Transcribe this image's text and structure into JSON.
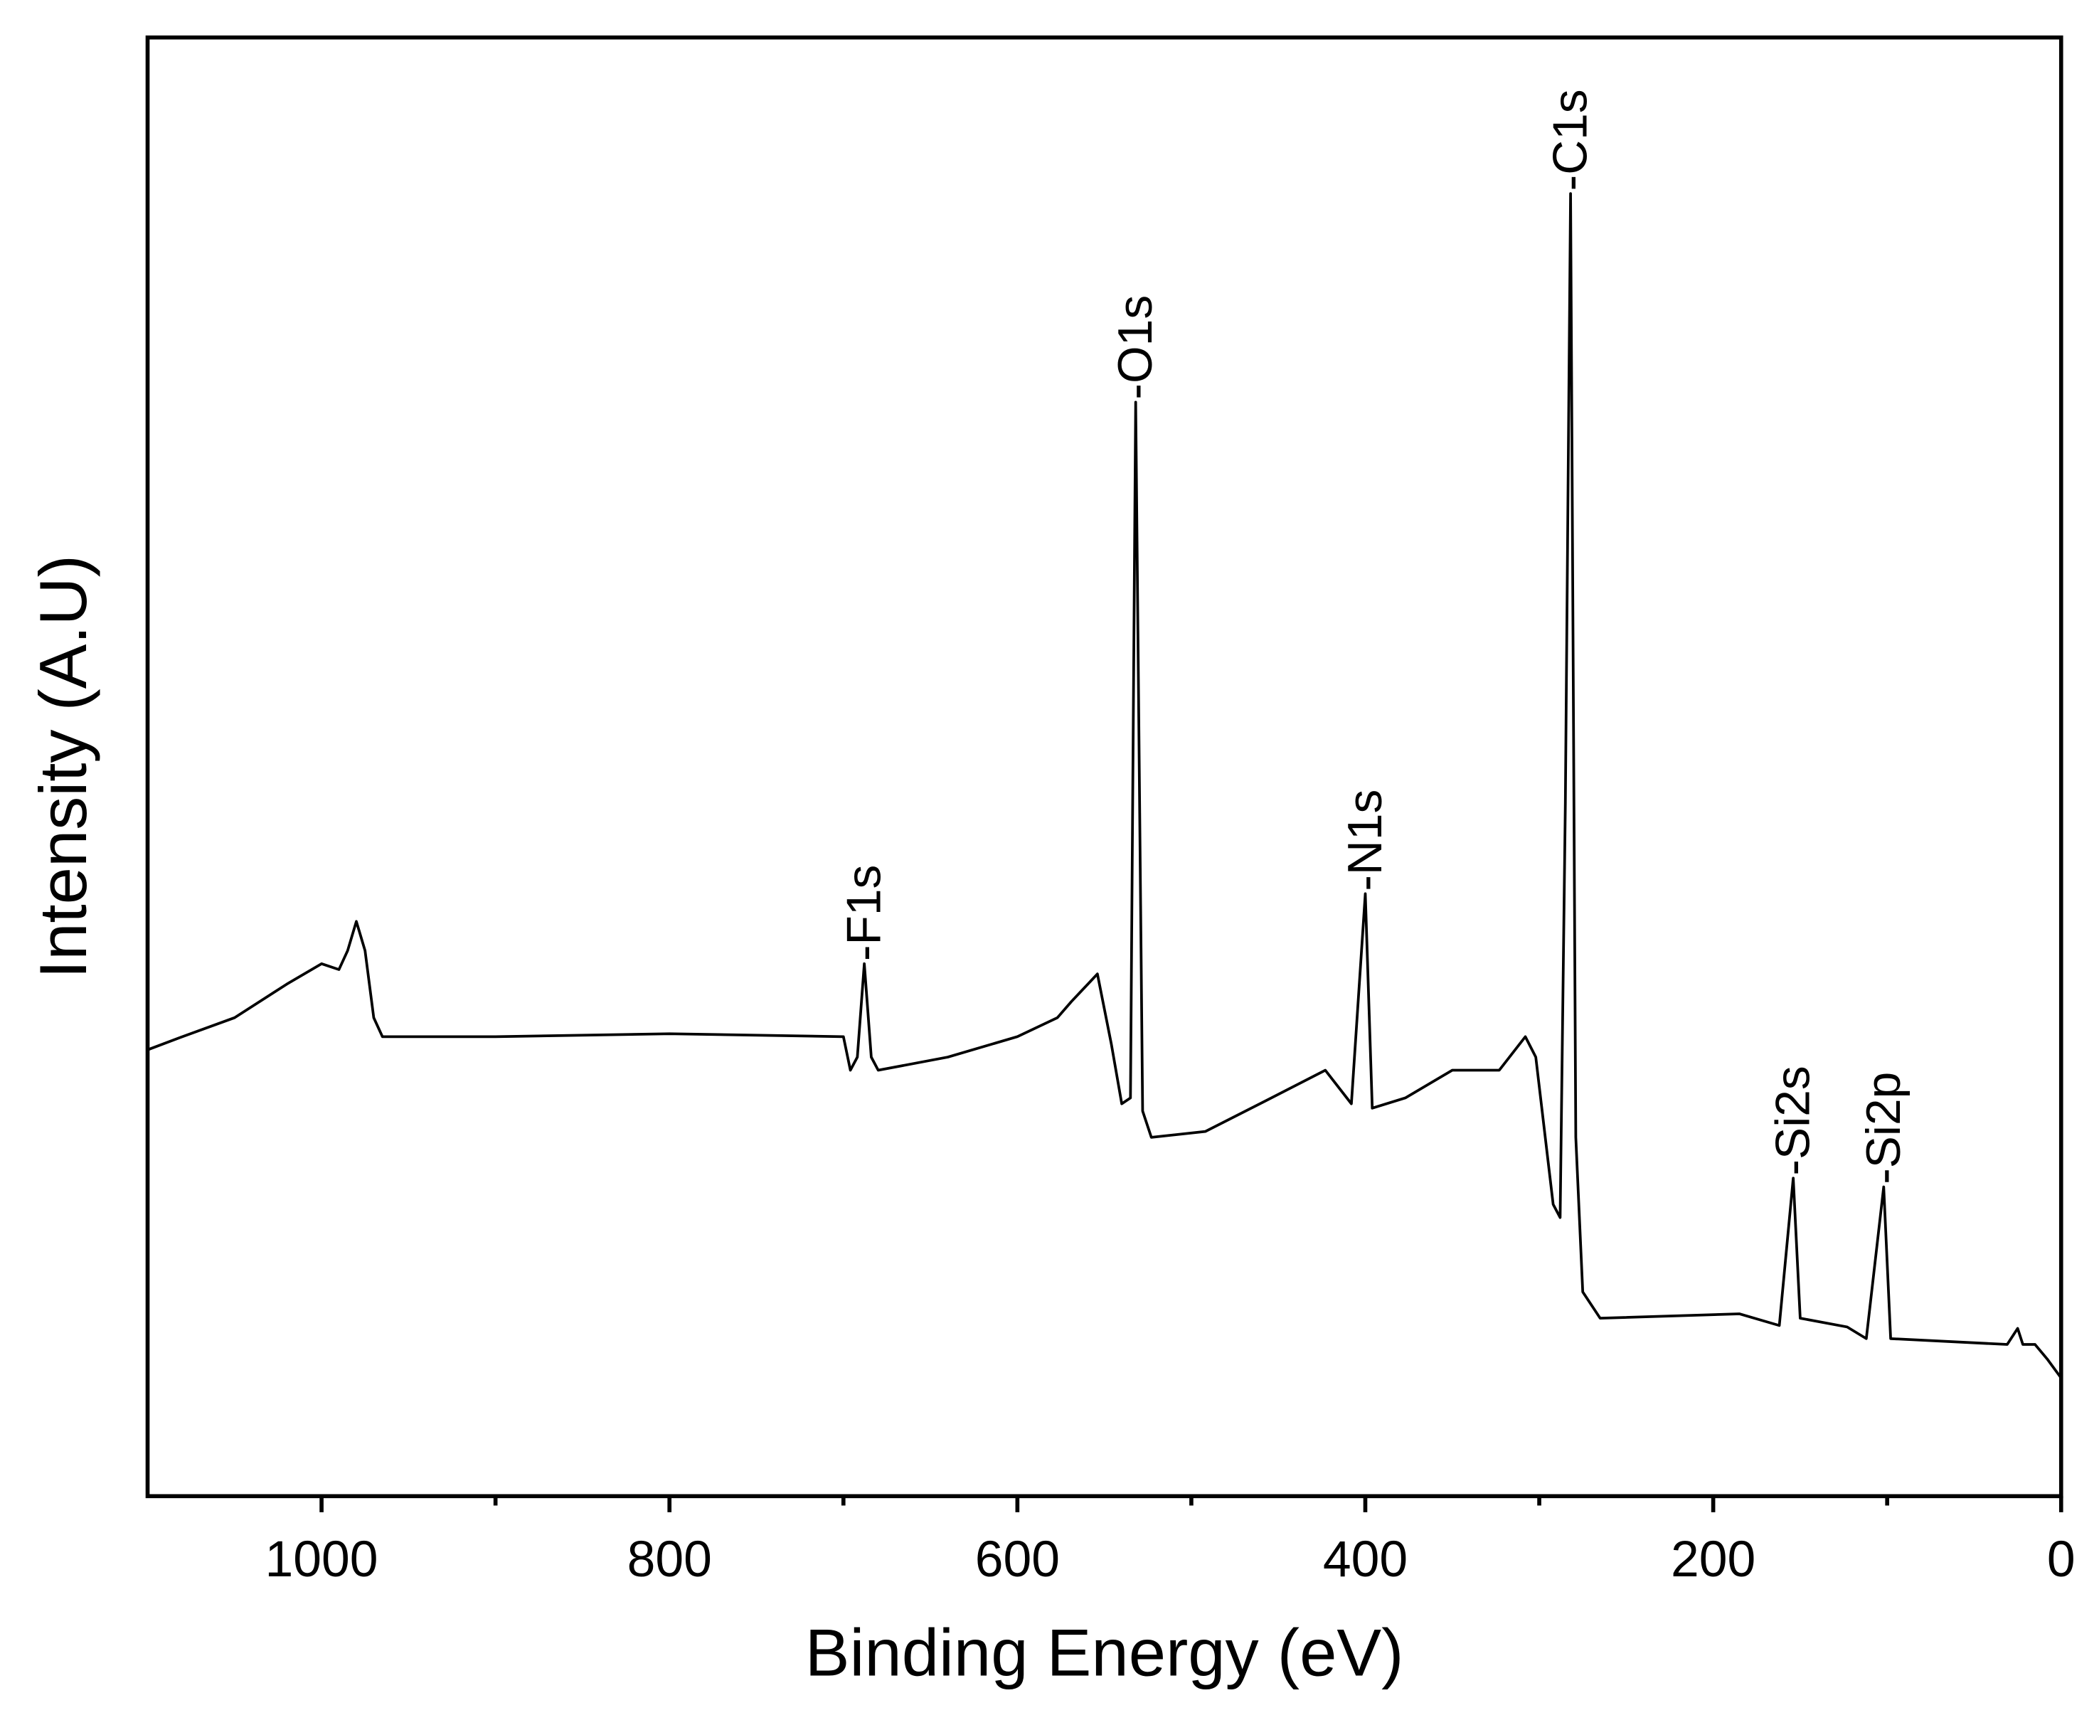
{
  "chart_data": {
    "type": "line",
    "xlabel": "Binding Energy (eV)",
    "ylabel": "Intensity (A.U)",
    "xlim": [
      1100,
      0
    ],
    "xticks": [
      1000,
      800,
      600,
      400,
      200,
      0
    ],
    "xminorticks": [
      900,
      700,
      500,
      300,
      100
    ],
    "ylim": [
      0,
      100
    ],
    "series": [
      {
        "color": "#000000",
        "x": [
          1100,
          1080,
          1050,
          1020,
          1000,
          990,
          985,
          980,
          975,
          970,
          965,
          900,
          800,
          700,
          696,
          692,
          688,
          684,
          680,
          640,
          600,
          577,
          569,
          554,
          546,
          540,
          535,
          532,
          528,
          523,
          492,
          454,
          423,
          408,
          400,
          396,
          377,
          350,
          323,
          308,
          302,
          292,
          288,
          285,
          282,
          279,
          275,
          265,
          185,
          162,
          154,
          150,
          123,
          112,
          102,
          98,
          31,
          25,
          22,
          15,
          8,
          0
        ],
        "values": [
          30.6,
          31.5,
          32.8,
          35.1,
          36.5,
          36.1,
          37.4,
          39.4,
          37.4,
          32.8,
          31.5,
          31.5,
          31.7,
          31.5,
          29.2,
          30.1,
          36.5,
          30.1,
          29.2,
          30.1,
          31.5,
          32.8,
          33.9,
          35.8,
          31.0,
          26.9,
          27.3,
          75.0,
          26.4,
          24.6,
          25.0,
          27.3,
          29.2,
          26.9,
          41.3,
          26.6,
          27.3,
          29.2,
          29.2,
          31.5,
          30.1,
          20.0,
          19.1,
          47.5,
          89.3,
          24.6,
          14.0,
          12.2,
          12.5,
          11.7,
          21.8,
          12.2,
          11.6,
          10.8,
          21.2,
          10.8,
          10.4,
          11.5,
          10.4,
          10.4,
          9.4,
          8.1
        ]
      }
    ],
    "annotations": [
      {
        "text": "-F1s",
        "x": 688,
        "y": 36.5
      },
      {
        "text": "-O1s",
        "x": 532,
        "y": 75.0
      },
      {
        "text": "-N1s",
        "x": 400,
        "y": 41.3
      },
      {
        "text": "-C1s",
        "x": 282,
        "y": 89.3
      },
      {
        "text": "-Si2s",
        "x": 154,
        "y": 21.8
      },
      {
        "text": "-Si2p",
        "x": 102,
        "y": 21.2
      }
    ]
  }
}
